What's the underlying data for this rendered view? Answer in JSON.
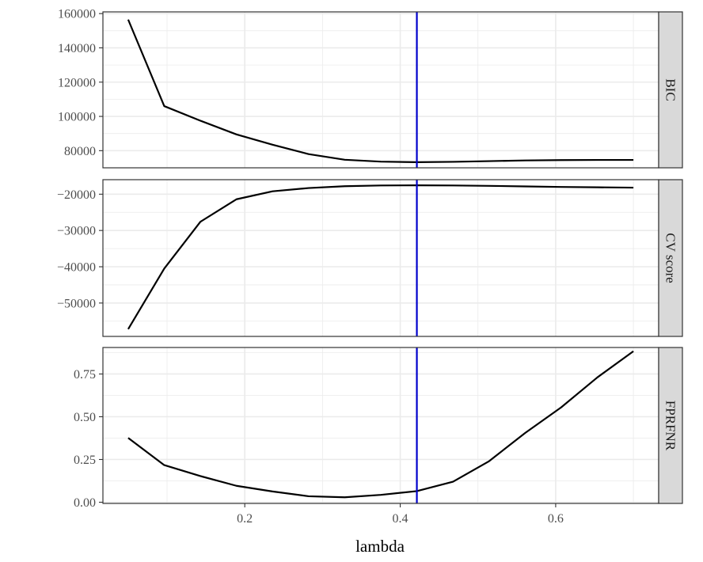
{
  "chart_data": {
    "type": "line",
    "xlabel": "lambda",
    "xlim": [
      0.0175,
      0.7325
    ],
    "x_ticks": [
      0.2,
      0.4,
      0.6
    ],
    "x_tick_labels": [
      "0.2",
      "0.4",
      "0.6"
    ],
    "x": [
      0.05,
      0.0964,
      0.1429,
      0.1893,
      0.2357,
      0.2821,
      0.3286,
      0.375,
      0.4214,
      0.4679,
      0.5143,
      0.5607,
      0.6071,
      0.6536,
      0.7
    ],
    "vline": {
      "x": 0.4214,
      "color": "#0000cc"
    },
    "grid": true,
    "facets": [
      {
        "name": "BIC",
        "strip_label": "BIC",
        "ylim": [
          70000,
          161000
        ],
        "y_ticks": [
          80000,
          100000,
          120000,
          140000,
          160000
        ],
        "y_tick_labels": [
          "80000",
          "100000",
          "120000",
          "140000",
          "160000"
        ],
        "values": [
          156500,
          106000,
          97500,
          89500,
          83500,
          78000,
          74700,
          73600,
          73300,
          73500,
          73900,
          74300,
          74500,
          74600,
          74600
        ]
      },
      {
        "name": "CV score",
        "strip_label": "CV score",
        "ylim": [
          -59200,
          -16000
        ],
        "y_ticks": [
          -50000,
          -40000,
          -30000,
          -20000
        ],
        "y_tick_labels": [
          "−50000",
          "−40000",
          "−30000",
          "−20000"
        ],
        "values": [
          -57200,
          -40500,
          -27600,
          -21400,
          -19200,
          -18300,
          -17800,
          -17600,
          -17550,
          -17600,
          -17700,
          -17850,
          -18000,
          -18100,
          -18200
        ]
      },
      {
        "name": "FPRFNR",
        "strip_label": "FPRFNR",
        "ylim": [
          -0.007,
          0.905
        ],
        "y_ticks": [
          0.0,
          0.25,
          0.5,
          0.75
        ],
        "y_tick_labels": [
          "0.00",
          "0.25",
          "0.50",
          "0.75"
        ],
        "values": [
          0.376,
          0.217,
          0.153,
          0.096,
          0.063,
          0.035,
          0.029,
          0.043,
          0.065,
          0.12,
          0.24,
          0.405,
          0.555,
          0.73,
          0.883
        ]
      }
    ],
    "colors": {
      "line": "#000000",
      "grid": "#ebebeb",
      "panel_border": "#333333",
      "strip_fill": "#d9d9d9"
    }
  }
}
